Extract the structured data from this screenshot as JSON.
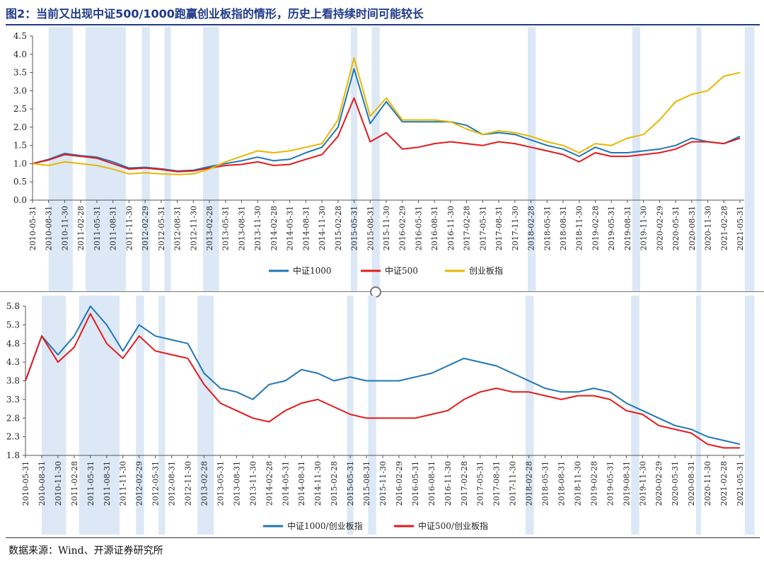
{
  "title": "图2：当前又出现中证500/1000跑赢创业板指的情形，历史上看持续时间可能较长",
  "source": "数据来源：Wind、开源证券研究所",
  "chart_data": [
    {
      "type": "line",
      "x_ticks": [
        "2010-05-31",
        "2010-08-31",
        "2010-11-30",
        "2011-02-28",
        "2011-05-31",
        "2011-08-31",
        "2011-11-30",
        "2012-02-29",
        "2012-05-31",
        "2012-08-31",
        "2012-11-30",
        "2013-02-28",
        "2013-05-31",
        "2013-08-31",
        "2013-11-30",
        "2014-02-28",
        "2014-05-31",
        "2014-08-31",
        "2014-11-30",
        "2015-02-28",
        "2015-05-31",
        "2015-08-31",
        "2015-11-30",
        "2016-02-29",
        "2016-05-31",
        "2016-08-31",
        "2016-11-30",
        "2017-02-28",
        "2017-05-31",
        "2017-08-31",
        "2017-11-30",
        "2018-02-28",
        "2018-05-31",
        "2018-08-31",
        "2018-11-30",
        "2019-02-28",
        "2019-05-31",
        "2019-08-31",
        "2019-11-30",
        "2020-02-29",
        "2020-05-31",
        "2020-08-31",
        "2020-11-30",
        "2021-02-28",
        "2021-05-31"
      ],
      "y_ticks": [
        "0.0",
        "0.5",
        "1.0",
        "1.5",
        "2.0",
        "2.5",
        "3.0",
        "3.5",
        "4.0",
        "4.5"
      ],
      "ylim": [
        0,
        4.5
      ],
      "shaded_ranges": [
        [
          1,
          2.5
        ],
        [
          3.3,
          5.8
        ],
        [
          6.8,
          7.3
        ],
        [
          8.2,
          8.6
        ],
        [
          10.6,
          11.6
        ],
        [
          19.8,
          20.2
        ],
        [
          21.1,
          21.6
        ],
        [
          30.8,
          31.3
        ],
        [
          37.3,
          37.8
        ],
        [
          41.3,
          41.6
        ],
        [
          44.3,
          44.9
        ]
      ],
      "legend_position": "bottom",
      "series": [
        {
          "name": "中证1000",
          "color": "#1f77b4",
          "values": [
            1.0,
            1.12,
            1.28,
            1.22,
            1.18,
            1.05,
            0.88,
            0.9,
            0.86,
            0.8,
            0.82,
            0.92,
            1.0,
            1.08,
            1.18,
            1.08,
            1.12,
            1.3,
            1.45,
            2.0,
            3.6,
            2.1,
            2.7,
            2.15,
            2.15,
            2.15,
            2.15,
            2.05,
            1.8,
            1.85,
            1.8,
            1.65,
            1.5,
            1.4,
            1.2,
            1.45,
            1.3,
            1.3,
            1.35,
            1.4,
            1.5,
            1.7,
            1.6,
            1.55,
            1.75
          ]
        },
        {
          "name": "中证500",
          "color": "#e41a1c",
          "values": [
            1.0,
            1.1,
            1.25,
            1.2,
            1.15,
            1.0,
            0.85,
            0.88,
            0.84,
            0.78,
            0.8,
            0.88,
            0.95,
            0.98,
            1.05,
            0.95,
            0.98,
            1.12,
            1.25,
            1.75,
            2.8,
            1.6,
            1.85,
            1.4,
            1.45,
            1.55,
            1.6,
            1.55,
            1.5,
            1.6,
            1.55,
            1.45,
            1.35,
            1.25,
            1.05,
            1.3,
            1.2,
            1.2,
            1.25,
            1.3,
            1.4,
            1.6,
            1.6,
            1.55,
            1.7
          ]
        },
        {
          "name": "创业板指",
          "color": "#e6b800",
          "values": [
            1.0,
            0.95,
            1.05,
            1.0,
            0.95,
            0.85,
            0.72,
            0.75,
            0.72,
            0.7,
            0.72,
            0.85,
            1.05,
            1.2,
            1.35,
            1.3,
            1.35,
            1.45,
            1.55,
            2.2,
            3.9,
            2.3,
            2.8,
            2.2,
            2.2,
            2.2,
            2.15,
            1.95,
            1.8,
            1.9,
            1.85,
            1.75,
            1.6,
            1.5,
            1.3,
            1.55,
            1.5,
            1.7,
            1.8,
            2.2,
            2.7,
            2.9,
            3.0,
            3.4,
            3.5
          ]
        }
      ]
    },
    {
      "type": "line",
      "x_ticks": [
        "2010-05-31",
        "2010-08-31",
        "2010-11-30",
        "2011-02-28",
        "2011-05-31",
        "2011-08-31",
        "2011-11-30",
        "2012-02-29",
        "2012-05-31",
        "2012-08-31",
        "2012-11-30",
        "2013-02-28",
        "2013-05-31",
        "2013-08-31",
        "2013-11-30",
        "2014-02-28",
        "2014-05-31",
        "2014-08-31",
        "2014-11-30",
        "2015-02-28",
        "2015-05-31",
        "2015-08-31",
        "2015-11-30",
        "2016-02-29",
        "2016-05-31",
        "2016-08-31",
        "2016-11-30",
        "2017-02-28",
        "2017-05-31",
        "2017-08-31",
        "2017-11-30",
        "2018-02-28",
        "2018-05-31",
        "2018-08-31",
        "2018-11-30",
        "2019-02-28",
        "2019-05-31",
        "2019-08-31",
        "2019-11-30",
        "2020-02-29",
        "2020-05-31",
        "2020-08-31",
        "2020-11-30",
        "2021-02-28",
        "2021-05-31"
      ],
      "y_ticks": [
        "1.8",
        "2.3",
        "2.8",
        "3.3",
        "3.8",
        "4.3",
        "4.8",
        "5.3",
        "5.8"
      ],
      "ylim": [
        1.8,
        5.8
      ],
      "shaded_ranges": [
        [
          1,
          2.5
        ],
        [
          3.3,
          5.8
        ],
        [
          6.8,
          7.3
        ],
        [
          8.2,
          8.6
        ],
        [
          10.6,
          11.6
        ],
        [
          19.8,
          20.2
        ],
        [
          21.1,
          21.6
        ],
        [
          30.8,
          31.3
        ],
        [
          37.3,
          37.8
        ],
        [
          41.3,
          41.6
        ],
        [
          44.3,
          44.9
        ]
      ],
      "legend_position": "bottom",
      "series": [
        {
          "name": "中证1000/创业板指",
          "color": "#1f77b4",
          "values": [
            3.8,
            5.0,
            4.5,
            5.0,
            5.8,
            5.3,
            4.6,
            5.3,
            5.0,
            4.9,
            4.8,
            4.0,
            3.6,
            3.5,
            3.3,
            3.7,
            3.8,
            4.1,
            4.0,
            3.8,
            3.9,
            3.8,
            3.8,
            3.8,
            3.9,
            4.0,
            4.2,
            4.4,
            4.3,
            4.2,
            4.0,
            3.8,
            3.6,
            3.5,
            3.5,
            3.6,
            3.5,
            3.2,
            3.0,
            2.8,
            2.6,
            2.5,
            2.3,
            2.2,
            2.1
          ]
        },
        {
          "name": "中证500/创业板指",
          "color": "#e41a1c",
          "values": [
            3.8,
            5.0,
            4.3,
            4.7,
            5.6,
            4.8,
            4.4,
            5.0,
            4.6,
            4.5,
            4.4,
            3.7,
            3.2,
            3.0,
            2.8,
            2.7,
            3.0,
            3.2,
            3.3,
            3.1,
            2.9,
            2.8,
            2.8,
            2.8,
            2.8,
            2.9,
            3.0,
            3.3,
            3.5,
            3.6,
            3.5,
            3.5,
            3.4,
            3.3,
            3.4,
            3.4,
            3.3,
            3.0,
            2.9,
            2.6,
            2.5,
            2.4,
            2.1,
            2.0,
            2.0
          ]
        }
      ]
    }
  ]
}
